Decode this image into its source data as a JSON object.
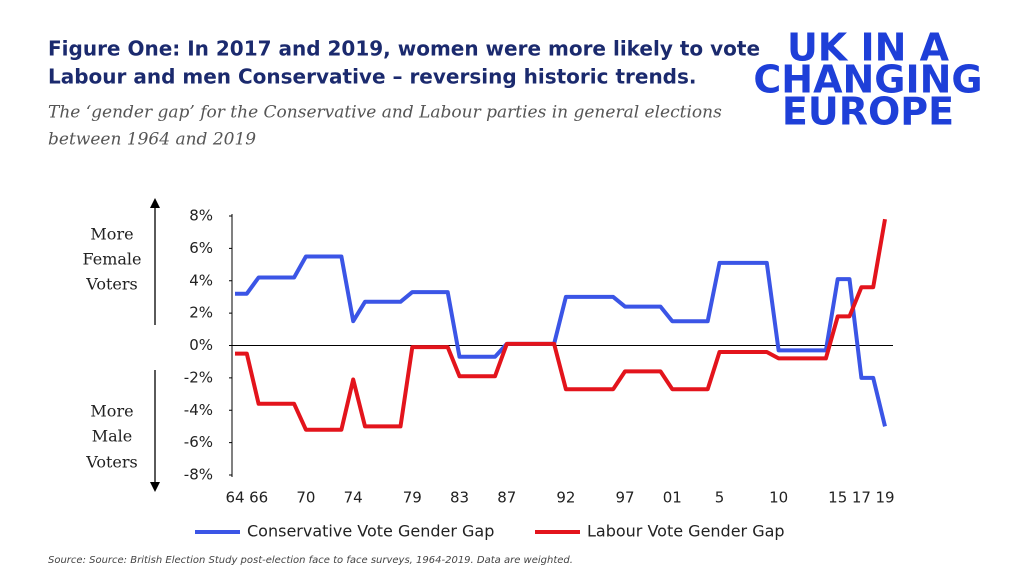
{
  "chart_data": {
    "type": "line",
    "title": [
      "Figure One: In 2017 and 2019, women were more likely to vote",
      "Labour and men Conservative – reversing historic trends."
    ],
    "subtitle": [
      "The ‘gender gap’ for the Conservative and Labour parties in general elections",
      "between 1964 and 2019"
    ],
    "logo": [
      "UK IN A",
      "CHANGING",
      "EUROPE"
    ],
    "annotations": [
      [
        "More",
        "Female",
        "Voters"
      ],
      [
        "More",
        "Male",
        "Voters"
      ]
    ],
    "source": "Source: Source: British Election Study post-election face to face surveys, 1964-2019. Data are weighted.",
    "categories": [
      "64",
      null,
      "66",
      null,
      null,
      null,
      "70",
      null,
      null,
      null,
      "74",
      null,
      null,
      null,
      null,
      "79",
      null,
      null,
      null,
      "83",
      null,
      null,
      null,
      "87",
      null,
      null,
      null,
      null,
      "92",
      null,
      null,
      null,
      null,
      "97",
      null,
      null,
      null,
      "01",
      null,
      null,
      null,
      "5",
      null,
      null,
      null,
      null,
      "10",
      null,
      null,
      null,
      null,
      "15",
      null,
      "17",
      null,
      "19"
    ],
    "series": [
      {
        "name": "Conservative Vote Gender Gap",
        "color": "#3b55e6",
        "values": [
          3.2,
          3.2,
          4.2,
          4.2,
          4.2,
          4.2,
          5.5,
          5.5,
          5.5,
          5.5,
          1.5,
          2.7,
          2.7,
          2.7,
          2.7,
          3.3,
          3.3,
          3.3,
          3.3,
          -0.7,
          -0.7,
          -0.7,
          -0.7,
          0.1,
          0.1,
          0.1,
          0.1,
          0.1,
          3.0,
          3.0,
          3.0,
          3.0,
          3.0,
          2.4,
          2.4,
          2.4,
          2.4,
          1.5,
          1.5,
          1.5,
          1.5,
          5.1,
          5.1,
          5.1,
          5.1,
          5.1,
          -0.3,
          -0.3,
          -0.3,
          -0.3,
          -0.3,
          4.1,
          4.1,
          -2.0,
          -2.0,
          -5.0
        ]
      },
      {
        "name": "Labour Vote Gender Gap",
        "color": "#e3141c",
        "values": [
          -0.5,
          -0.5,
          -3.6,
          -3.6,
          -3.6,
          -3.6,
          -5.2,
          -5.2,
          -5.2,
          -5.2,
          -2.1,
          -5.0,
          -5.0,
          -5.0,
          -5.0,
          -0.1,
          -0.1,
          -0.1,
          -0.1,
          -1.9,
          -1.9,
          -1.9,
          -1.9,
          0.1,
          0.1,
          0.1,
          0.1,
          0.1,
          -2.7,
          -2.7,
          -2.7,
          -2.7,
          -2.7,
          -1.6,
          -1.6,
          -1.6,
          -1.6,
          -2.7,
          -2.7,
          -2.7,
          -2.7,
          -0.4,
          -0.4,
          -0.4,
          -0.4,
          -0.4,
          -0.8,
          -0.8,
          -0.8,
          -0.8,
          -0.8,
          1.8,
          1.8,
          3.6,
          3.6,
          7.8
        ]
      }
    ],
    "ylim": [
      -8,
      8
    ],
    "yticks": [
      {
        "value": 8,
        "label": "8%"
      },
      {
        "value": 6,
        "label": "6%"
      },
      {
        "value": 4,
        "label": "4%"
      },
      {
        "value": 2,
        "label": "2%"
      },
      {
        "value": 0,
        "label": "0%"
      },
      {
        "value": -2,
        "label": "-2%"
      },
      {
        "value": -4,
        "label": "-4%"
      },
      {
        "value": -6,
        "label": "-6%"
      },
      {
        "value": -8,
        "label": "-8%"
      }
    ],
    "grid": false
  }
}
